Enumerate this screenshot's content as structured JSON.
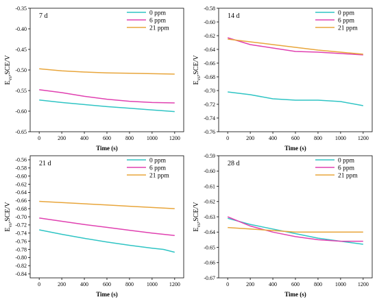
{
  "chart_data": [
    {
      "type": "line",
      "panel_label": "7 d",
      "xlabel": "Time (s)",
      "ylabel": "E vs SCE/V",
      "ylabel_main": "E",
      "ylabel_sub": "vs",
      "ylabel_rest": "SCE/V",
      "xlim": [
        -80,
        1280
      ],
      "ylim": [
        -0.65,
        -0.35
      ],
      "xticks": [
        0,
        200,
        400,
        600,
        800,
        1000,
        1200
      ],
      "yticks": [
        -0.35,
        -0.4,
        -0.45,
        -0.5,
        -0.55,
        -0.6,
        -0.65
      ],
      "ytick_labels": [
        "-0.35",
        "-0.40",
        "-0.45",
        "-0.50",
        "-0.55",
        "-0.60",
        "-0.65"
      ],
      "legend_position": "top-right",
      "series": [
        {
          "name": "0 ppm",
          "color": "#2ec4c4",
          "x": [
            0,
            200,
            400,
            600,
            800,
            1000,
            1200
          ],
          "y": [
            -0.573,
            -0.579,
            -0.584,
            -0.589,
            -0.593,
            -0.597,
            -0.601
          ]
        },
        {
          "name": "6 ppm",
          "color": "#e040b0",
          "x": [
            0,
            200,
            400,
            600,
            800,
            1000,
            1200
          ],
          "y": [
            -0.548,
            -0.555,
            -0.564,
            -0.571,
            -0.576,
            -0.579,
            -0.58
          ]
        },
        {
          "name": "21 ppm",
          "color": "#e8a53a",
          "x": [
            0,
            200,
            400,
            600,
            800,
            1000,
            1200
          ],
          "y": [
            -0.497,
            -0.502,
            -0.505,
            -0.507,
            -0.508,
            -0.509,
            -0.51
          ]
        }
      ]
    },
    {
      "type": "line",
      "panel_label": "14 d",
      "xlabel": "Time (s)",
      "ylabel": "E vs SCE/V",
      "ylabel_main": "E",
      "ylabel_sub": "vs",
      "ylabel_rest": "SCE/V",
      "xlim": [
        -80,
        1280
      ],
      "ylim": [
        -0.76,
        -0.58
      ],
      "xticks": [
        0,
        200,
        400,
        600,
        800,
        1000,
        1200
      ],
      "yticks": [
        -0.58,
        -0.6,
        -0.62,
        -0.64,
        -0.66,
        -0.68,
        -0.7,
        -0.72,
        -0.74,
        -0.76
      ],
      "ytick_labels": [
        "-0.58",
        "-0.60",
        "-0.62",
        "-0.64",
        "-0.66",
        "-0.68",
        "-0.70",
        "-0.72",
        "-0.74",
        "-0.76"
      ],
      "legend_position": "top-right",
      "series": [
        {
          "name": "0 ppm",
          "color": "#2ec4c4",
          "x": [
            0,
            200,
            400,
            600,
            800,
            1000,
            1200
          ],
          "y": [
            -0.702,
            -0.706,
            -0.712,
            -0.714,
            -0.714,
            -0.716,
            -0.722
          ]
        },
        {
          "name": "6 ppm",
          "color": "#e040b0",
          "x": [
            0,
            200,
            400,
            600,
            800,
            1000,
            1200
          ],
          "y": [
            -0.623,
            -0.633,
            -0.638,
            -0.643,
            -0.644,
            -0.646,
            -0.648
          ]
        },
        {
          "name": "21 ppm",
          "color": "#e8a53a",
          "x": [
            0,
            200,
            400,
            600,
            800,
            1000,
            1200
          ],
          "y": [
            -0.625,
            -0.629,
            -0.633,
            -0.637,
            -0.641,
            -0.644,
            -0.647
          ]
        }
      ]
    },
    {
      "type": "line",
      "panel_label": "21 d",
      "xlabel": "Time (s)",
      "ylabel": "E vs SCE/V",
      "ylabel_main": "E",
      "ylabel_sub": "vs",
      "ylabel_rest": "SCE/V",
      "xlim": [
        -80,
        1280
      ],
      "ylim": [
        -0.85,
        -0.55
      ],
      "xticks": [
        0,
        200,
        400,
        600,
        800,
        1000,
        1200
      ],
      "yticks": [
        -0.56,
        -0.58,
        -0.6,
        -0.62,
        -0.64,
        -0.66,
        -0.68,
        -0.7,
        -0.72,
        -0.74,
        -0.76,
        -0.78,
        -0.8,
        -0.82,
        -0.84
      ],
      "ytick_labels": [
        "-0.56",
        "-0.58",
        "-0.60",
        "-0.62",
        "-0.64",
        "-0.66",
        "-0.68",
        "-0.70",
        "-0.72",
        "-0.74",
        "-0.76",
        "-0.78",
        "-0.80",
        "-0.82",
        "-0.84"
      ],
      "legend_position": "top-right",
      "series": [
        {
          "name": "0 ppm",
          "color": "#2ec4c4",
          "x": [
            0,
            200,
            400,
            600,
            800,
            1000,
            1100,
            1200
          ],
          "y": [
            -0.732,
            -0.743,
            -0.753,
            -0.762,
            -0.77,
            -0.777,
            -0.78,
            -0.787
          ]
        },
        {
          "name": "6 ppm",
          "color": "#e040b0",
          "x": [
            0,
            200,
            400,
            600,
            800,
            1000,
            1200
          ],
          "y": [
            -0.703,
            -0.711,
            -0.719,
            -0.726,
            -0.733,
            -0.74,
            -0.746
          ]
        },
        {
          "name": "21 ppm",
          "color": "#e8a53a",
          "x": [
            0,
            200,
            400,
            600,
            800,
            1000,
            1200
          ],
          "y": [
            -0.662,
            -0.665,
            -0.668,
            -0.671,
            -0.674,
            -0.677,
            -0.68
          ]
        }
      ]
    },
    {
      "type": "line",
      "panel_label": "28 d",
      "xlabel": "Time (s)",
      "ylabel": "E vs SCE/V",
      "ylabel_main": "E",
      "ylabel_sub": "vs",
      "ylabel_rest": "SCE/V",
      "xlim": [
        -80,
        1280
      ],
      "ylim": [
        -0.67,
        -0.59
      ],
      "xticks": [
        0,
        200,
        400,
        600,
        800,
        1000,
        1200
      ],
      "yticks": [
        -0.59,
        -0.6,
        -0.61,
        -0.62,
        -0.63,
        -0.64,
        -0.65,
        -0.66,
        -0.67
      ],
      "ytick_labels": [
        "-0.59",
        "-0.60",
        "-0.61",
        "-0.62",
        "-0.63",
        "-0.64",
        "-0.65",
        "-0.66",
        "-0.67"
      ],
      "legend_position": "top-right",
      "series": [
        {
          "name": "0 ppm",
          "color": "#2ec4c4",
          "x": [
            0,
            200,
            400,
            600,
            800,
            1000,
            1200
          ],
          "y": [
            -0.631,
            -0.635,
            -0.638,
            -0.641,
            -0.644,
            -0.646,
            -0.648
          ]
        },
        {
          "name": "6 ppm",
          "color": "#e040b0",
          "x": [
            0,
            200,
            400,
            600,
            800,
            1000,
            1200
          ],
          "y": [
            -0.63,
            -0.636,
            -0.64,
            -0.643,
            -0.645,
            -0.646,
            -0.646
          ]
        },
        {
          "name": "21 ppm",
          "color": "#e8a53a",
          "x": [
            0,
            200,
            400,
            600,
            800,
            1000,
            1200
          ],
          "y": [
            -0.637,
            -0.638,
            -0.639,
            -0.64,
            -0.64,
            -0.64,
            -0.64
          ]
        }
      ]
    }
  ]
}
